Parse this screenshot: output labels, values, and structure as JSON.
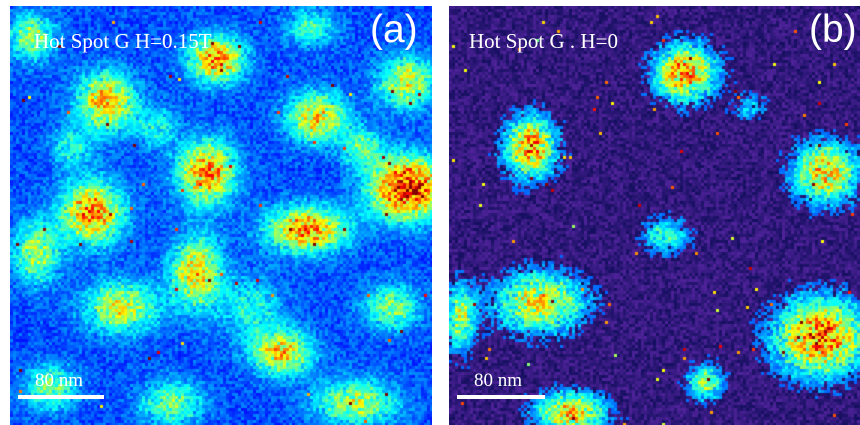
{
  "panels": [
    {
      "id": "a",
      "label": "Hot Spot G   H=0.15T",
      "letter": "(a)",
      "scale_bar": "80 nm",
      "palette": "jet",
      "background_color": "#1030c8",
      "spot_count_approx": 22
    },
    {
      "id": "b",
      "label": "Hot Spot G . H=0",
      "letter": "(b)",
      "scale_bar": "80 nm",
      "palette": "jet",
      "background_color": "#0a1670",
      "spot_count_approx": 10
    }
  ]
}
